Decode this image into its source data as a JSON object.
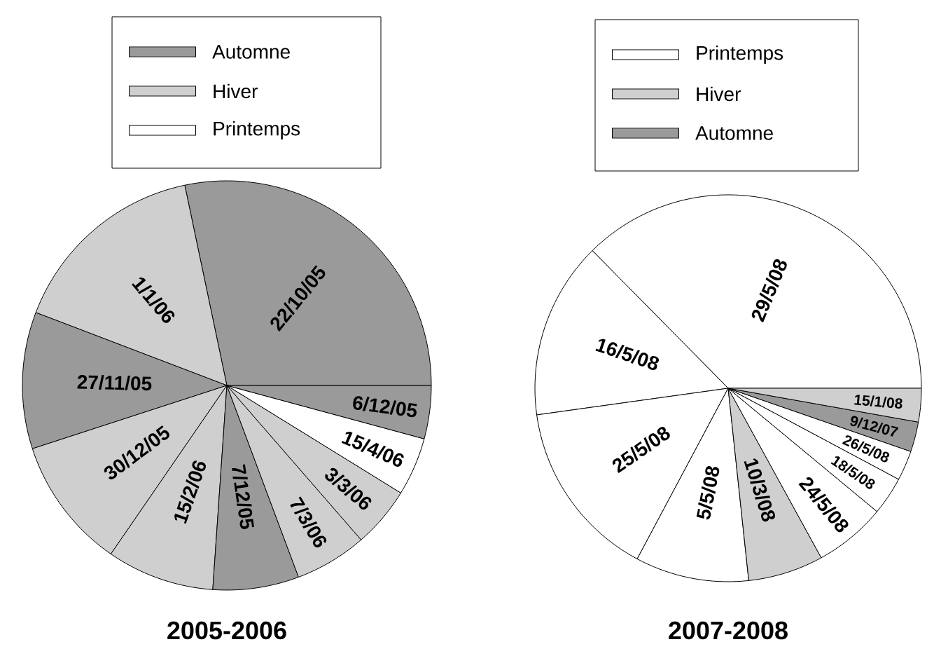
{
  "chart_data": [
    {
      "type": "pie",
      "title": "2005-2006",
      "categories": [
        "22/10/05",
        "1/1/06",
        "27/11/05",
        "30/12/05",
        "15/2/06",
        "7/12/05",
        "7/3/06",
        "3/3/06",
        "15/4/06",
        "6/12/05"
      ],
      "values": [
        28.3,
        15.9,
        10.8,
        10.4,
        8.5,
        6.8,
        5.7,
        4.8,
        4.6,
        4.2
      ],
      "colors": [
        "#9a9a9a",
        "#cfcfcf",
        "#9a9a9a",
        "#cfcfcf",
        "#cfcfcf",
        "#9a9a9a",
        "#cfcfcf",
        "#cfcfcf",
        "#ffffff",
        "#9a9a9a"
      ],
      "annotations": [
        "Automne",
        "Hiver",
        "Printemps"
      ]
    },
    {
      "type": "pie",
      "title": "2007-2008",
      "categories": [
        "29/5/08",
        "16/5/08",
        "25/5/08",
        "5/5/08",
        "10/3/08",
        "24/5/08",
        "18/5/08",
        "26/5/08",
        "9/12/07",
        "15/1/08"
      ],
      "values": [
        37.4,
        14.8,
        15.0,
        9.5,
        6.3,
        6.0,
        3.2,
        2.5,
        2.5,
        2.8
      ],
      "colors": [
        "#ffffff",
        "#ffffff",
        "#ffffff",
        "#ffffff",
        "#cfcfcf",
        "#ffffff",
        "#ffffff",
        "#ffffff",
        "#9a9a9a",
        "#cfcfcf"
      ],
      "annotations": [
        "Printemps",
        "Hiver",
        "Automne"
      ]
    }
  ]
}
